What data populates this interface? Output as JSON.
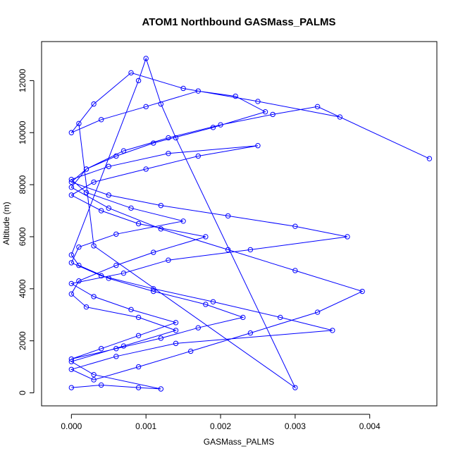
{
  "chart_data": {
    "type": "line",
    "title": "ATOM1 Northbound GASMass_PALMS",
    "xlabel": "GASMass_PALMS",
    "ylabel": "Altitude (m)",
    "xlim": [
      -0.0004,
      0.0049
    ],
    "ylim": [
      -500,
      13500
    ],
    "x_ticks": [
      0,
      0.001,
      0.002,
      0.003,
      0.004
    ],
    "x_tick_labels": [
      "0.000",
      "0.001",
      "0.002",
      "0.003",
      "0.004"
    ],
    "y_ticks": [
      0,
      2000,
      4000,
      6000,
      8000,
      10000,
      12000
    ],
    "y_tick_labels": [
      "0",
      "2000",
      "4000",
      "6000",
      "8000",
      "10000",
      "12000"
    ],
    "grid": false,
    "legend": "none",
    "series_color": "#0000ff",
    "marker": "open-circle",
    "series": [
      {
        "x": [
          0.0,
          0.0004,
          0.0009,
          0.0012,
          0.0003,
          0.0,
          0.0007,
          0.0014,
          0.0009,
          0.0002,
          0.0,
          0.0001,
          0.0006,
          0.0011,
          0.0018,
          0.0009,
          0.0004,
          0.0,
          0.0003,
          0.001,
          0.0017,
          0.0025,
          0.0013,
          0.0005,
          0.0,
          0.0002,
          0.0008,
          0.0015,
          0.0006,
          0.0001,
          0.0,
          0.0004,
          0.0011,
          0.0019,
          0.0028,
          0.0035,
          0.0014,
          0.0006,
          0.0,
          0.0003,
          0.0009,
          0.0016,
          0.0024,
          0.0033,
          0.0039,
          0.003,
          0.0021,
          0.0012,
          0.0005,
          0.0,
          0.0002,
          0.0007,
          0.0013,
          0.002,
          0.0027,
          0.0033,
          0.0048,
          0.0036,
          0.0025,
          0.0015,
          0.0008,
          0.0003,
          0.0,
          0.0004,
          0.001,
          0.0017,
          0.0022,
          0.0026,
          0.0019,
          0.0011,
          0.0006,
          0.0002,
          0.0,
          0.0005,
          0.0012,
          0.0021,
          0.003,
          0.0037,
          0.0024,
          0.0013,
          0.0007,
          0.0,
          0.0003,
          0.0008,
          0.0014,
          0.0009,
          0.0004,
          0.0,
          0.0006,
          0.0012,
          0.0017,
          0.0023,
          0.0018,
          0.0011,
          0.0005,
          0.0001,
          0.0,
          0.0009,
          0.001,
          0.0012,
          0.0014,
          0.003,
          0.0003,
          0.0001
        ],
        "y": [
          200,
          300,
          200,
          150,
          700,
          1200,
          1800,
          2400,
          2900,
          3300,
          3800,
          4300,
          4900,
          5400,
          6000,
          6500,
          7000,
          7600,
          8100,
          8600,
          9100,
          9500,
          9200,
          8700,
          8200,
          7700,
          7100,
          6600,
          6100,
          5600,
          5000,
          4500,
          4000,
          3500,
          2900,
          2400,
          1900,
          1400,
          900,
          500,
          1000,
          1600,
          2300,
          3100,
          3900,
          4700,
          5500,
          6300,
          7100,
          7900,
          8600,
          9300,
          9800,
          10300,
          10700,
          11000,
          9000,
          10600,
          11200,
          11700,
          12300,
          11100,
          10000,
          10500,
          11000,
          11600,
          11400,
          10800,
          10200,
          9600,
          9100,
          8600,
          8100,
          7600,
          7200,
          6800,
          6400,
          6000,
          5500,
          5100,
          4600,
          4200,
          3700,
          3200,
          2700,
          2200,
          1700,
          1300,
          1700,
          2100,
          2500,
          2900,
          3400,
          3900,
          4400,
          4900,
          5300,
          12000,
          12850,
          11100,
          9800,
          200,
          5650,
          10350
        ]
      }
    ]
  }
}
